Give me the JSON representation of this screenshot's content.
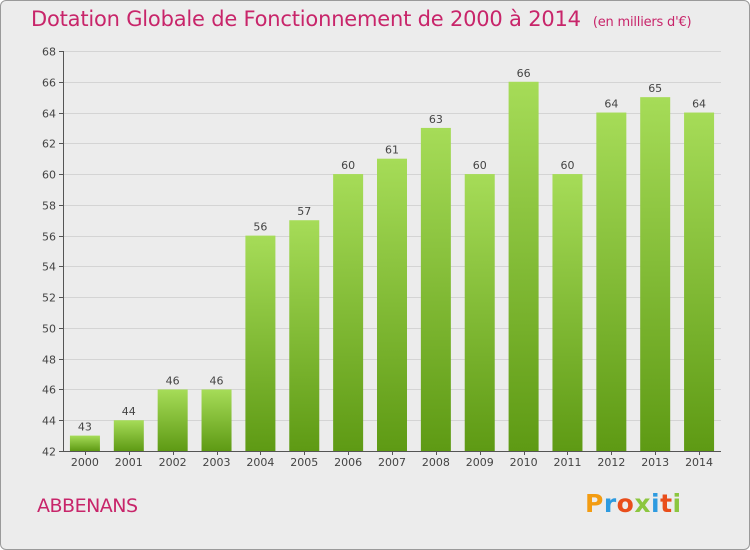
{
  "header": {
    "title": "Dotation Globale de Fonctionnement de 2000 à 2014",
    "unit": "(en milliers d'€)"
  },
  "footer": {
    "place": "ABBENANS",
    "brand": "Proxiti"
  },
  "colors": {
    "title": "#c8256a",
    "bar_light": "#a6dc58",
    "bar_dark": "#5e9a14",
    "background": "#ececec",
    "grid": "#d4d4d4",
    "brand_letters": [
      "#f39c12",
      "#2e9be0",
      "#e94e1b",
      "#8cc63f",
      "#2e9be0",
      "#e94e1b",
      "#8cc63f"
    ]
  },
  "chart_data": {
    "type": "bar",
    "title": "Dotation Globale de Fonctionnement de 2000 à 2014",
    "subtitle": "(en milliers d'€)",
    "xlabel": "",
    "ylabel": "",
    "categories": [
      "2000",
      "2001",
      "2002",
      "2003",
      "2004",
      "2005",
      "2006",
      "2007",
      "2008",
      "2009",
      "2010",
      "2011",
      "2012",
      "2013",
      "2014"
    ],
    "values": [
      43,
      44,
      46,
      46,
      56,
      57,
      60,
      61,
      63,
      60,
      66,
      60,
      64,
      65,
      64
    ],
    "ylim": [
      42,
      68
    ],
    "yticks": [
      42,
      44,
      46,
      48,
      50,
      52,
      54,
      56,
      58,
      60,
      62,
      64,
      66,
      68
    ],
    "grid": true,
    "data_labels": true
  }
}
